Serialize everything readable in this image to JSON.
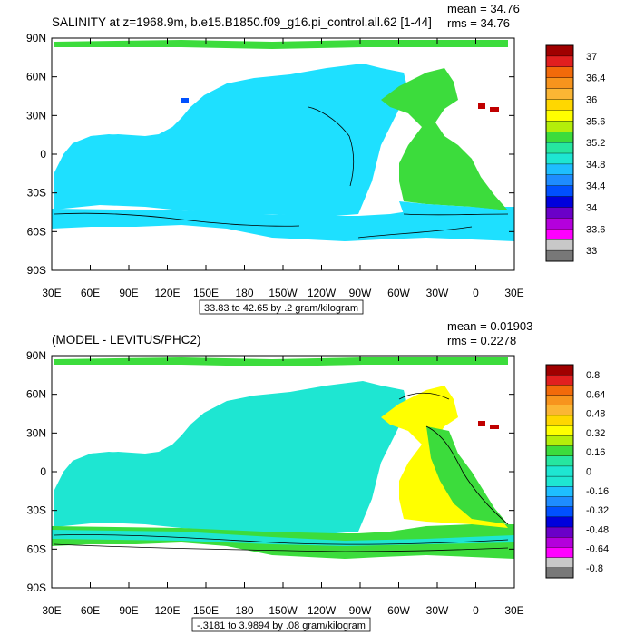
{
  "panels": [
    {
      "title": "SALINITY at z=1968.9m, b.e15.B1850.f09_g16.pi_control.all.62 [1-44]",
      "mean_label": "mean = 34.76",
      "rms_label": "rms = 34.76",
      "range_label": "33.83 to 42.65 by .2 gram/kilogram",
      "colorbar_labels": [
        "37",
        "36.4",
        "36",
        "35.6",
        "35.2",
        "34.8",
        "34.4",
        "34",
        "33.6",
        "33"
      ],
      "colors": [
        "#a00000",
        "#e11f1f",
        "#f26a0a",
        "#f7941d",
        "#fbb634",
        "#ffd700",
        "#ffff00",
        "#b4ee0a",
        "#3cdc3c",
        "#26e6a0",
        "#1ee6d2",
        "#1ebeff",
        "#1e8cff",
        "#0050ff",
        "#0000dc",
        "#6a00c8",
        "#b400dc",
        "#ff00ff",
        "#c8c8c8",
        "#787878"
      ],
      "ocean_fill": "#1ee0ff",
      "atlantic_fill": "#3cdc3c"
    },
    {
      "title": "(MODEL - LEVITUS/PHC2)",
      "mean_label": "mean = 0.01903",
      "rms_label": "rms = 0.2278",
      "range_label": "-.3181 to 3.9894 by .08 gram/kilogram",
      "colorbar_labels": [
        "0.8",
        "0.64",
        "0.48",
        "0.32",
        "0.16",
        "0",
        "-0.16",
        "-0.32",
        "-0.48",
        "-0.64",
        "-0.8"
      ],
      "colors": [
        "#a00000",
        "#e11f1f",
        "#f26a0a",
        "#f7941d",
        "#fbb634",
        "#ffd700",
        "#ffff00",
        "#b4ee0a",
        "#3cdc3c",
        "#26e6a0",
        "#1ee6d2",
        "#1ee6d2",
        "#1ebeff",
        "#1e8cff",
        "#0050ff",
        "#0000dc",
        "#6a00c8",
        "#b400dc",
        "#ff00ff",
        "#c8c8c8",
        "#787878"
      ],
      "ocean_fill": "#1ee6d2",
      "atlantic_fill": "#ffff00"
    }
  ],
  "lat_labels": [
    "90N",
    "60N",
    "30N",
    "0",
    "30S",
    "60S",
    "90S"
  ],
  "lon_labels": [
    "30E",
    "60E",
    "90E",
    "120E",
    "150E",
    "180",
    "150W",
    "120W",
    "90W",
    "60W",
    "30W",
    "0",
    "30E"
  ]
}
